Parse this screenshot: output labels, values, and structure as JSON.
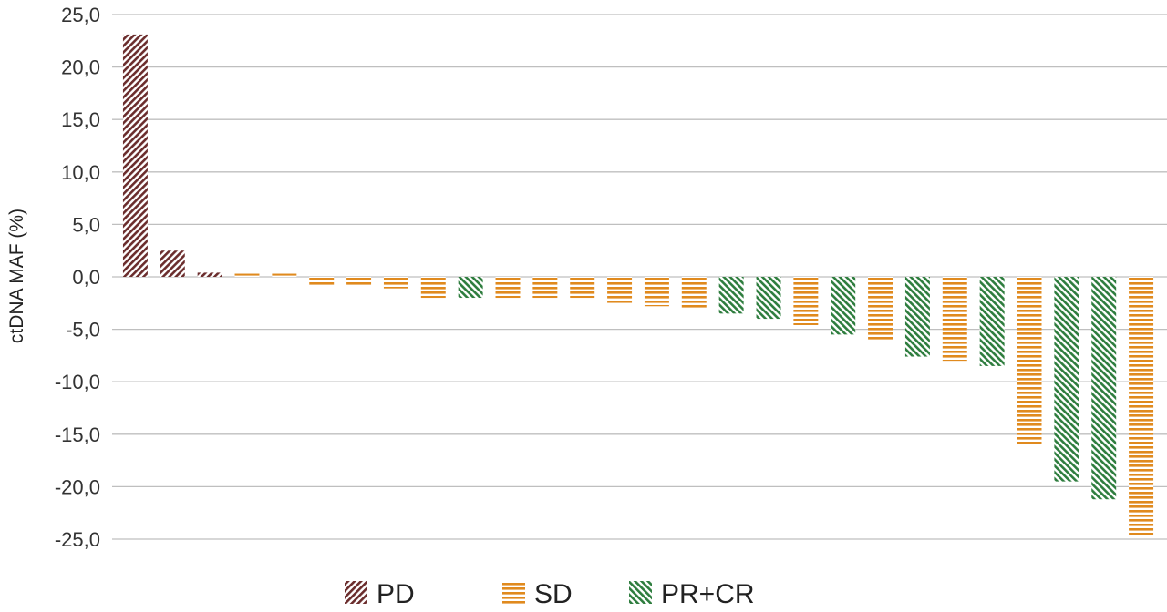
{
  "chart_data": {
    "type": "bar",
    "title": "",
    "xlabel": "",
    "ylabel": "ctDNA MAF (%)",
    "ylim": [
      -25,
      25
    ],
    "ytick_step": 5,
    "yticks": [
      "25,0",
      "20,0",
      "15,0",
      "10,0",
      "5,0",
      "0,0",
      "-5,0",
      "-10,0",
      "-15,0",
      "-20,0",
      "-25,0"
    ],
    "grid": true,
    "legend_position": "bottom",
    "groups": [
      {
        "key": "PD",
        "name": "PD",
        "color": "#6b2d2d",
        "pattern": "diagonal"
      },
      {
        "key": "SD",
        "name": "SD",
        "color": "#e08a1e",
        "pattern": "horizontal"
      },
      {
        "key": "PRCR",
        "name": "PR+CR",
        "color": "#2e7d3e",
        "pattern": "diagonal"
      }
    ],
    "bars": [
      {
        "group": "PD",
        "value": 23.1
      },
      {
        "group": "PD",
        "value": 2.5
      },
      {
        "group": "PD",
        "value": 0.4
      },
      {
        "group": "SD",
        "value": 0.3
      },
      {
        "group": "SD",
        "value": 0.3
      },
      {
        "group": "SD",
        "value": -0.8
      },
      {
        "group": "SD",
        "value": -0.8
      },
      {
        "group": "SD",
        "value": -1.1
      },
      {
        "group": "SD",
        "value": -2.0
      },
      {
        "group": "PRCR",
        "value": -2.0
      },
      {
        "group": "SD",
        "value": -2.0
      },
      {
        "group": "SD",
        "value": -2.0
      },
      {
        "group": "SD",
        "value": -2.0
      },
      {
        "group": "SD",
        "value": -2.5
      },
      {
        "group": "SD",
        "value": -2.8
      },
      {
        "group": "SD",
        "value": -3.0
      },
      {
        "group": "PRCR",
        "value": -3.5
      },
      {
        "group": "PRCR",
        "value": -4.0
      },
      {
        "group": "SD",
        "value": -4.6
      },
      {
        "group": "PRCR",
        "value": -5.5
      },
      {
        "group": "SD",
        "value": -6.1
      },
      {
        "group": "PRCR",
        "value": -7.6
      },
      {
        "group": "SD",
        "value": -8.0
      },
      {
        "group": "PRCR",
        "value": -8.5
      },
      {
        "group": "SD",
        "value": -16.0
      },
      {
        "group": "PRCR",
        "value": -19.5
      },
      {
        "group": "PRCR",
        "value": -21.2
      },
      {
        "group": "SD",
        "value": -24.8
      }
    ]
  }
}
